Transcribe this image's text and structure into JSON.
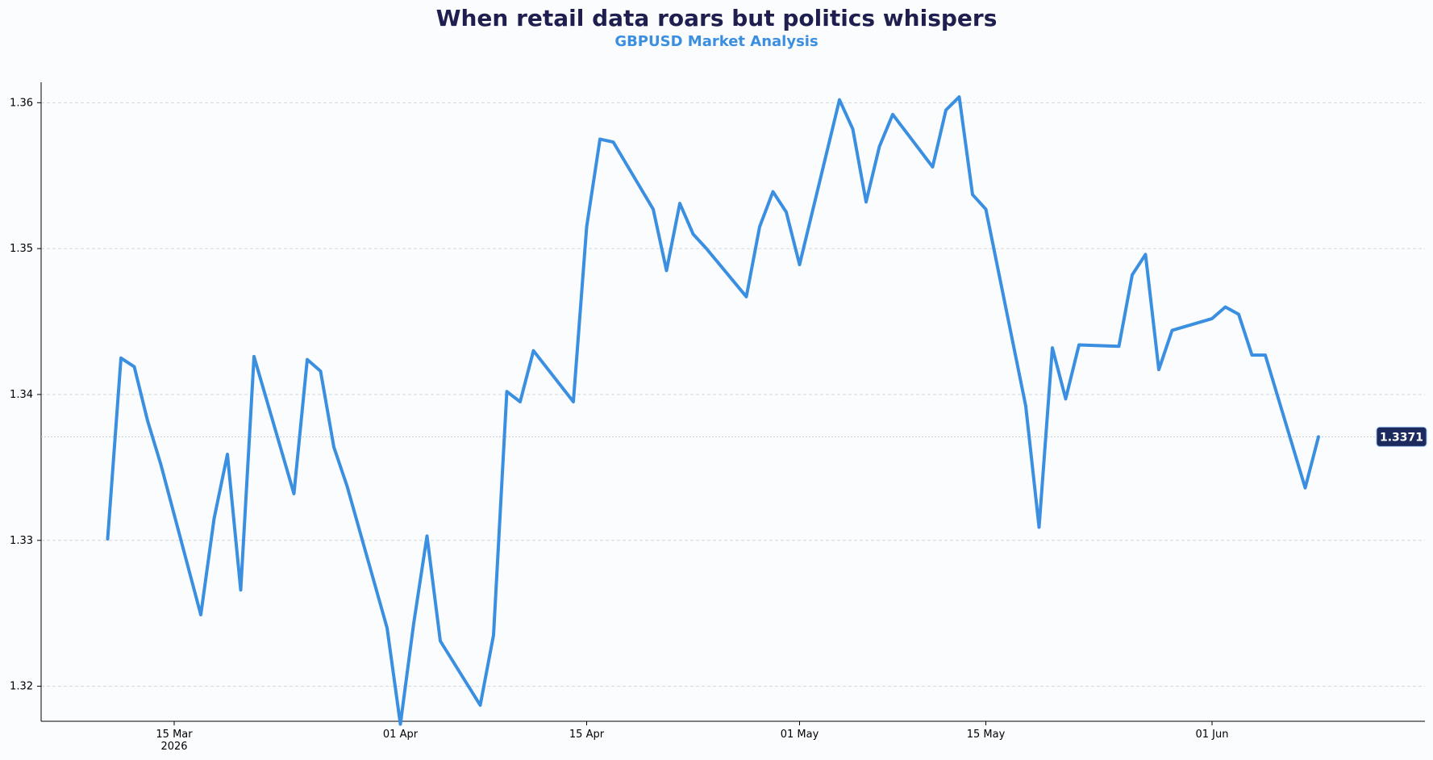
{
  "chart_data": {
    "type": "line",
    "title": "When retail data roars but politics whispers",
    "subtitle": "GBPUSD Market Analysis",
    "xlabel": "",
    "ylabel": "",
    "ylim": [
      1.3176,
      1.3614
    ],
    "yticks": [
      1.32,
      1.33,
      1.34,
      1.35,
      1.36
    ],
    "ytick_labels": [
      "1.32",
      "1.33",
      "1.34",
      "1.35",
      "1.36"
    ],
    "xlim": [
      "2026-03-05",
      "2026-06-17"
    ],
    "xticks": [
      {
        "date": "2026-03-15",
        "label": "15 Mar",
        "sublabel": "2026"
      },
      {
        "date": "2026-04-01",
        "label": "01 Apr",
        "sublabel": ""
      },
      {
        "date": "2026-04-15",
        "label": "15 Apr",
        "sublabel": ""
      },
      {
        "date": "2026-05-01",
        "label": "01 May",
        "sublabel": ""
      },
      {
        "date": "2026-05-15",
        "label": "15 May",
        "sublabel": ""
      },
      {
        "date": "2026-06-01",
        "label": "01 Jun",
        "sublabel": ""
      }
    ],
    "grid": "horizontal-dashed",
    "last_value": 1.3371,
    "last_value_label": "1.3371",
    "colors": {
      "line": "#3b8fe0",
      "badge": "#1c2a5e",
      "title": "#1f1f4f",
      "subtitle": "#3b8fe0",
      "grid": "#d3d7dc",
      "background": "#fafcfe"
    },
    "series": [
      {
        "x": [
          "2026-03-10",
          "2026-03-11",
          "2026-03-12",
          "2026-03-13",
          "2026-03-14",
          "2026-03-17",
          "2026-03-18",
          "2026-03-19",
          "2026-03-20",
          "2026-03-21",
          "2026-03-24",
          "2026-03-25",
          "2026-03-26",
          "2026-03-27",
          "2026-03-28",
          "2026-03-31",
          "2026-04-01",
          "2026-04-02",
          "2026-04-03",
          "2026-04-04",
          "2026-04-07",
          "2026-04-08",
          "2026-04-09",
          "2026-04-10",
          "2026-04-11",
          "2026-04-14",
          "2026-04-15",
          "2026-04-16",
          "2026-04-17",
          "2026-04-20",
          "2026-04-21",
          "2026-04-22",
          "2026-04-23",
          "2026-04-24",
          "2026-04-27",
          "2026-04-28",
          "2026-04-29",
          "2026-04-30",
          "2026-05-01",
          "2026-05-04",
          "2026-05-05",
          "2026-05-06",
          "2026-05-07",
          "2026-05-08",
          "2026-05-11",
          "2026-05-12",
          "2026-05-13",
          "2026-05-14",
          "2026-05-15",
          "2026-05-18",
          "2026-05-19",
          "2026-05-20",
          "2026-05-21",
          "2026-05-22",
          "2026-05-25",
          "2026-05-26",
          "2026-05-27",
          "2026-05-28",
          "2026-05-29",
          "2026-06-01",
          "2026-06-02",
          "2026-06-03",
          "2026-06-04",
          "2026-06-05",
          "2026-06-08",
          "2026-06-09"
        ],
        "y": [
          1.3301,
          1.3425,
          1.3419,
          1.3382,
          1.3352,
          1.3249,
          1.3315,
          1.3359,
          1.3266,
          1.3426,
          1.3332,
          1.3424,
          1.3416,
          1.3364,
          1.3337,
          1.324,
          1.3174,
          1.3243,
          1.3303,
          1.3231,
          1.3187,
          1.3235,
          1.3402,
          1.3395,
          1.343,
          1.3395,
          1.3515,
          1.3575,
          1.3573,
          1.3527,
          1.3485,
          1.3531,
          1.351,
          1.35,
          1.3467,
          1.3515,
          1.3539,
          1.3525,
          1.3489,
          1.3602,
          1.3582,
          1.3532,
          1.357,
          1.3592,
          1.3556,
          1.3595,
          1.3604,
          1.3537,
          1.3527,
          1.3392,
          1.3309,
          1.3432,
          1.3397,
          1.3434,
          1.3433,
          1.3482,
          1.3496,
          1.3417,
          1.3444,
          1.3452,
          1.346,
          1.3455,
          1.3427,
          1.3427,
          1.3336,
          1.3371
        ]
      }
    ]
  }
}
